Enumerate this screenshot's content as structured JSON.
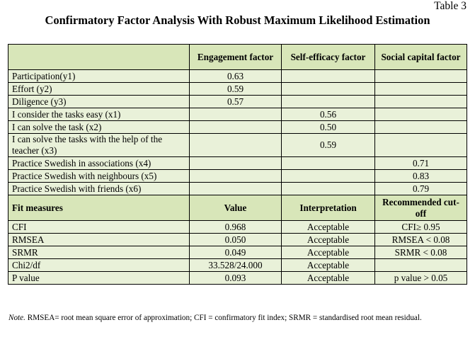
{
  "table_number": "Table 3",
  "title": "Confirmatory Factor Analysis With Robust Maximum Likelihood Estimation",
  "columns": [
    "",
    "Engagement factor",
    "Self-efficacy factor",
    "Social capital factor"
  ],
  "loadings": [
    {
      "item": "Participation(y1)",
      "engagement": "0.63",
      "self_efficacy": "",
      "social_capital": ""
    },
    {
      "item": "Effort (y2)",
      "engagement": "0.59",
      "self_efficacy": "",
      "social_capital": ""
    },
    {
      "item": "Diligence (y3)",
      "engagement": "0.57",
      "self_efficacy": "",
      "social_capital": ""
    },
    {
      "item": "I consider the tasks easy (x1)",
      "engagement": "",
      "self_efficacy": "0.56",
      "social_capital": ""
    },
    {
      "item": "I can solve the task (x2)",
      "engagement": "",
      "self_efficacy": "0.50",
      "social_capital": ""
    },
    {
      "item": "I can solve the tasks with the help of the teacher (x3)",
      "engagement": "",
      "self_efficacy": "0.59",
      "social_capital": ""
    },
    {
      "item": "Practice Swedish in associations (x4)",
      "engagement": "",
      "self_efficacy": "",
      "social_capital": "0.71"
    },
    {
      "item": "Practice Swedish with neighbours (x5)",
      "engagement": "",
      "self_efficacy": "",
      "social_capital": "0.83"
    },
    {
      "item": "Practice Swedish with friends (x6)",
      "engagement": "",
      "self_efficacy": "",
      "social_capital": "0.79"
    }
  ],
  "fit_header": [
    "Fit measures",
    "Value",
    "Interpretation",
    "Recommended cut-off"
  ],
  "fit": [
    {
      "measure": "CFI",
      "value": "0.968",
      "interpretation": "Acceptable",
      "cutoff": "CFI≥ 0.95"
    },
    {
      "measure": "RMSEA",
      "value": "0.050",
      "interpretation": "Acceptable",
      "cutoff": "RMSEA < 0.08"
    },
    {
      "measure": "SRMR",
      "value": "0.049",
      "interpretation": "Acceptable",
      "cutoff": "SRMR < 0.08"
    },
    {
      "measure": "Chi2/df",
      "value": "33.528/24.000",
      "interpretation": "Acceptable",
      "cutoff": ""
    },
    {
      "measure": "P value",
      "value": "0.093",
      "interpretation": "Acceptable",
      "cutoff": "p value > 0.05"
    }
  ],
  "note_label": "Note.",
  "note_text": " RMSEA= root mean square error of approximation; CFI = confirmatory fit index; SRMR = standardised root mean residual."
}
